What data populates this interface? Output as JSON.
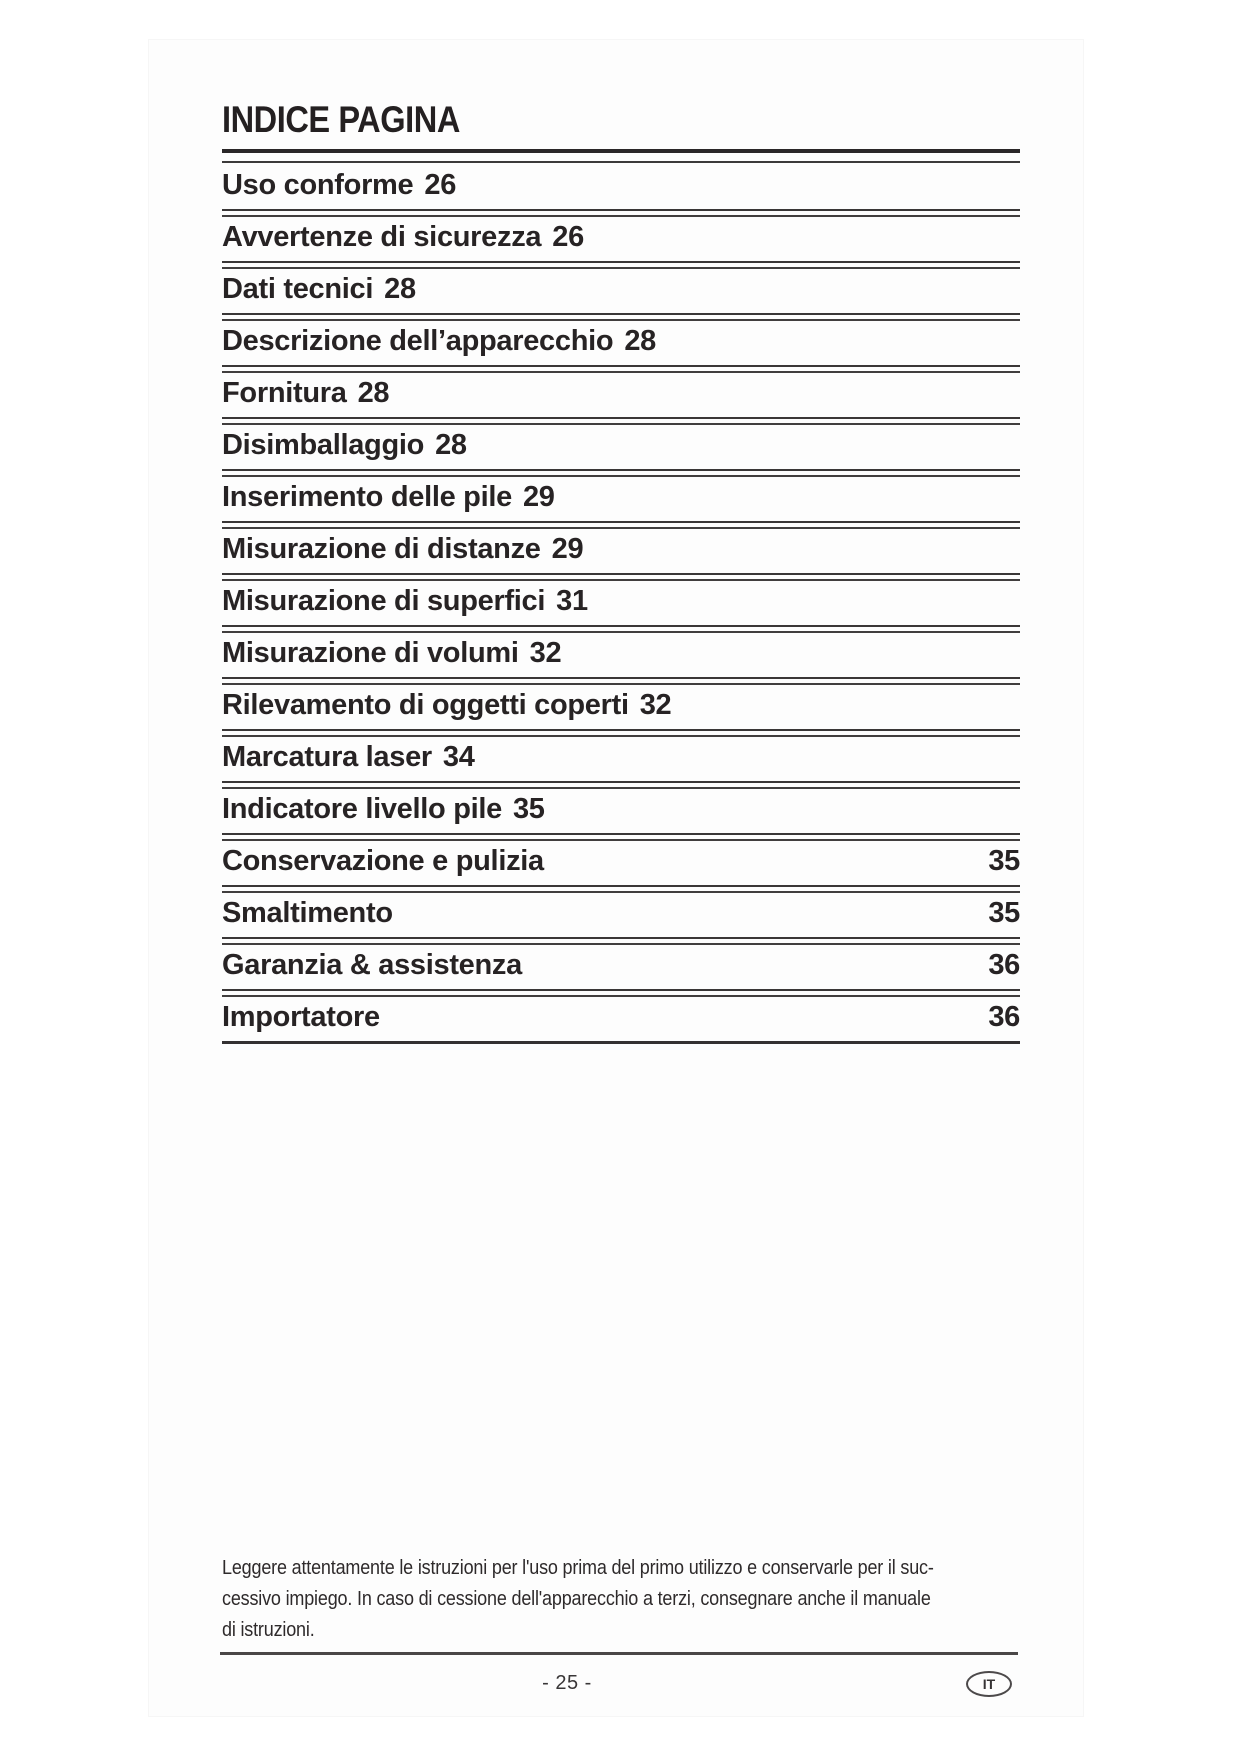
{
  "page": {
    "title": "INDICE PAGINA",
    "toc": {
      "items": [
        {
          "label": "Uso conforme",
          "page": "26",
          "align": "inline"
        },
        {
          "label": "Avvertenze di sicurezza",
          "page": "26",
          "align": "inline"
        },
        {
          "label": "Dati tecnici",
          "page": "28",
          "align": "inline"
        },
        {
          "label": "Descrizione dell’apparecchio",
          "page": "28",
          "align": "inline"
        },
        {
          "label": "Fornitura",
          "page": "28",
          "align": "inline"
        },
        {
          "label": "Disimballaggio",
          "page": "28",
          "align": "inline"
        },
        {
          "label": "Inserimento delle pile",
          "page": "29",
          "align": "inline"
        },
        {
          "label": "Misurazione di distanze",
          "page": "29",
          "align": "inline"
        },
        {
          "label": "Misurazione di superfici",
          "page": "31",
          "align": "inline"
        },
        {
          "label": "Misurazione di volumi",
          "page": "32",
          "align": "inline"
        },
        {
          "label": "Rilevamento di oggetti coperti",
          "page": "32",
          "align": "inline"
        },
        {
          "label": "Marcatura laser",
          "page": "34",
          "align": "inline"
        },
        {
          "label": "Indicatore livello pile",
          "page": "35",
          "align": "inline"
        },
        {
          "label": "Conservazione e pulizia",
          "page": "35",
          "align": "right"
        },
        {
          "label": "Smaltimento",
          "page": "35",
          "align": "right"
        },
        {
          "label": "Garanzia & assistenza",
          "page": "36",
          "align": "right"
        },
        {
          "label": "Importatore",
          "page": "36",
          "align": "right"
        }
      ]
    },
    "footnote": {
      "lines": [
        "Leggere attentamente le istruzioni per l'uso prima del primo utilizzo e conservarle per il suc-",
        "cessivo impiego. In caso di cessione dell'apparecchio a terzi, consegnare anche il manuale",
        "di istruzioni."
      ]
    },
    "footer": {
      "page_number": "- 25 -",
      "language_badge": "IT"
    },
    "colors": {
      "text": "#272324",
      "rule": "#3a3737",
      "paper": "#fdfdfd"
    }
  }
}
